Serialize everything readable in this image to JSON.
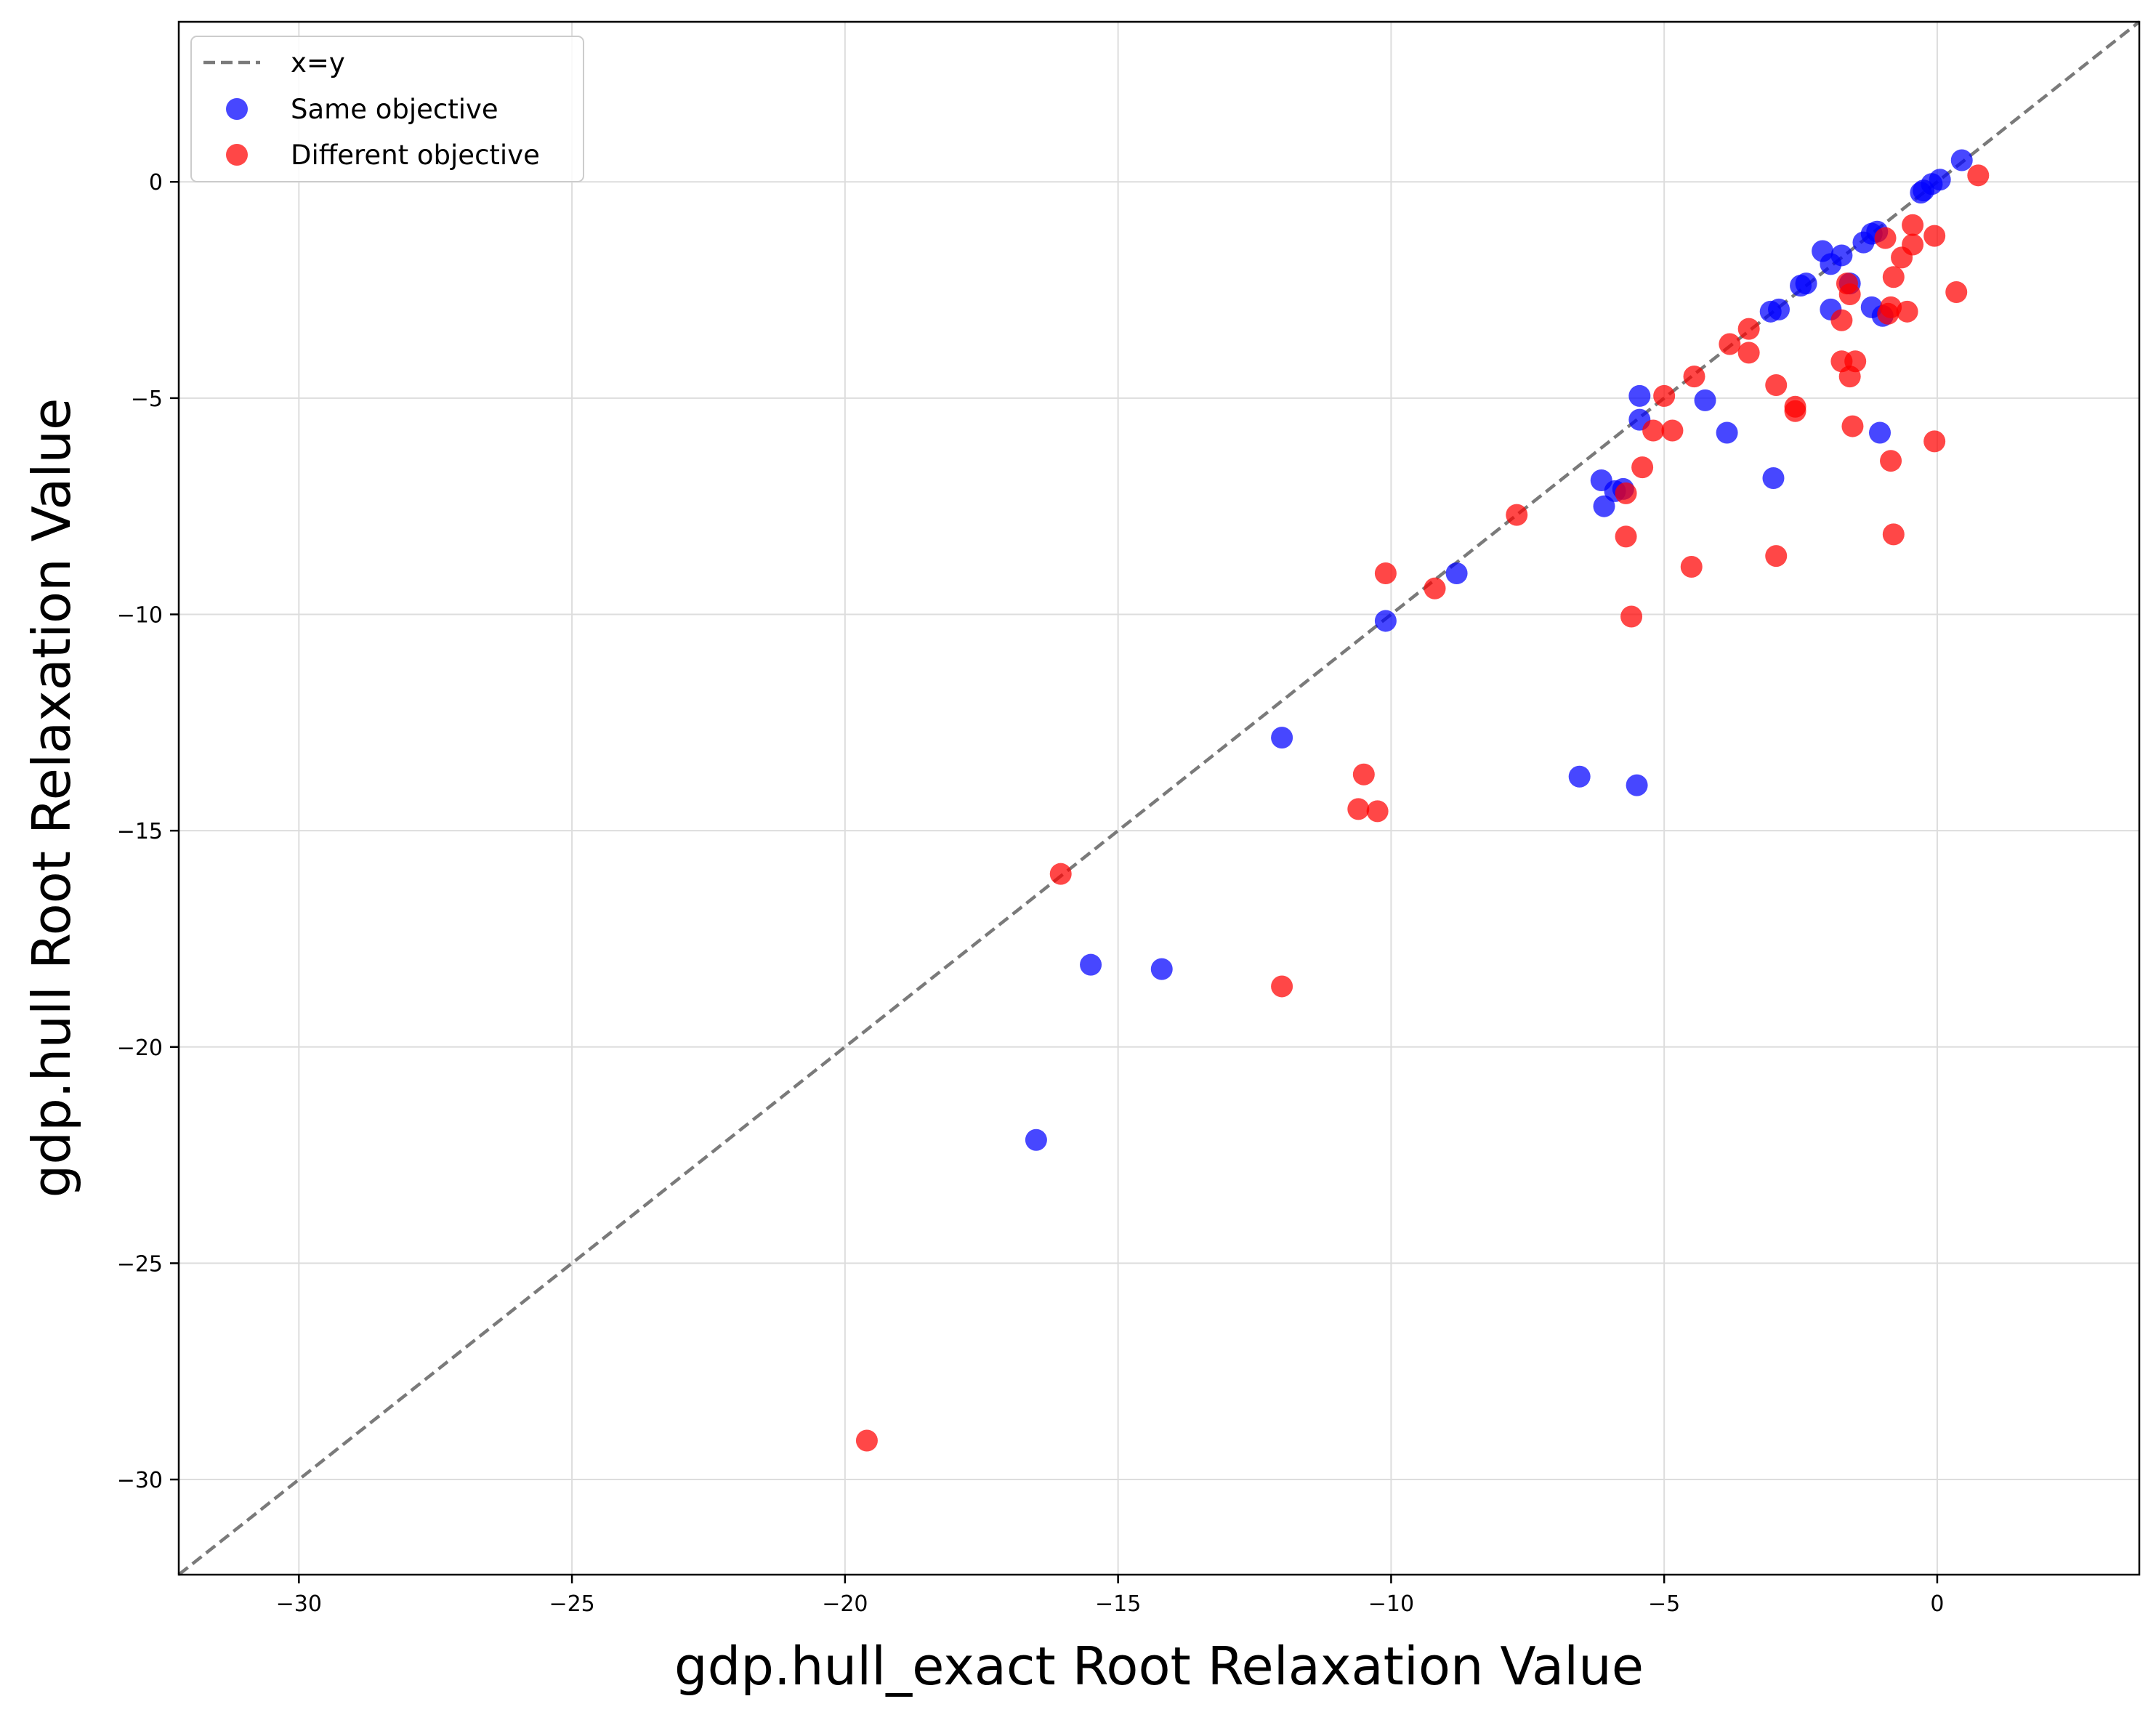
{
  "chart_data": {
    "type": "scatter",
    "title": "",
    "xlabel": "gdp.hull_exact Root Relaxation Value",
    "ylabel": "gdp.hull Root Relaxation Value",
    "xlim": [
      -32.2,
      3.7
    ],
    "ylim": [
      -32.2,
      3.7
    ],
    "xticks": [
      -30,
      -25,
      -20,
      -15,
      -10,
      -5,
      0
    ],
    "yticks": [
      -30,
      -25,
      -20,
      -15,
      -10,
      -5,
      0
    ],
    "xtick_labels": [
      "−30",
      "−25",
      "−20",
      "−15",
      "−10",
      "−5",
      "0"
    ],
    "ytick_labels": [
      "−30",
      "−25",
      "−20",
      "−15",
      "−10",
      "−5",
      "0"
    ],
    "grid": true,
    "legend_position": "top-left",
    "reference_line": {
      "name": "x=y",
      "color": "#7a7a7a",
      "style": "dashed"
    },
    "series": [
      {
        "name": "Same objective",
        "color": "#0000ff",
        "points": [
          [
            0.45,
            0.5
          ],
          [
            0.05,
            0.05
          ],
          [
            -0.1,
            -0.05
          ],
          [
            -0.25,
            -0.2
          ],
          [
            -0.3,
            -0.25
          ],
          [
            -1.1,
            -1.15
          ],
          [
            -1.2,
            -1.2
          ],
          [
            -1.35,
            -1.4
          ],
          [
            -1.75,
            -1.7
          ],
          [
            -1.95,
            -1.9
          ],
          [
            -2.1,
            -1.6
          ],
          [
            -2.4,
            -2.35
          ],
          [
            -2.5,
            -2.4
          ],
          [
            -2.9,
            -2.95
          ],
          [
            -3.05,
            -3.0
          ],
          [
            -1.6,
            -2.35
          ],
          [
            -1.95,
            -2.95
          ],
          [
            -1.2,
            -2.9
          ],
          [
            -1.0,
            -3.1
          ],
          [
            -1.05,
            -5.8
          ],
          [
            -3.0,
            -6.85
          ],
          [
            -3.85,
            -5.8
          ],
          [
            -4.25,
            -5.05
          ],
          [
            -5.45,
            -4.95
          ],
          [
            -5.45,
            -5.5
          ],
          [
            -6.15,
            -6.9
          ],
          [
            -6.1,
            -7.5
          ],
          [
            -5.9,
            -7.15
          ],
          [
            -5.75,
            -7.1
          ],
          [
            -8.8,
            -9.05
          ],
          [
            -10.1,
            -10.15
          ],
          [
            -12.0,
            -12.85
          ],
          [
            -6.55,
            -13.75
          ],
          [
            -5.5,
            -13.95
          ],
          [
            -15.5,
            -18.1
          ],
          [
            -14.2,
            -18.2
          ],
          [
            -16.5,
            -22.15
          ]
        ]
      },
      {
        "name": "Different objective",
        "color": "#ff0000",
        "points": [
          [
            0.75,
            0.15
          ],
          [
            -0.45,
            -1.0
          ],
          [
            -0.45,
            -1.45
          ],
          [
            -0.95,
            -1.3
          ],
          [
            -0.05,
            -1.25
          ],
          [
            -0.65,
            -1.75
          ],
          [
            -0.8,
            -2.2
          ],
          [
            -1.65,
            -2.35
          ],
          [
            -1.6,
            -2.6
          ],
          [
            0.35,
            -2.55
          ],
          [
            -0.85,
            -2.9
          ],
          [
            -0.9,
            -3.05
          ],
          [
            -0.55,
            -3.0
          ],
          [
            -1.75,
            -3.2
          ],
          [
            -3.45,
            -3.4
          ],
          [
            -3.8,
            -3.75
          ],
          [
            -3.45,
            -3.95
          ],
          [
            -1.75,
            -4.15
          ],
          [
            -1.5,
            -4.15
          ],
          [
            -1.6,
            -4.5
          ],
          [
            -4.45,
            -4.5
          ],
          [
            -2.95,
            -4.7
          ],
          [
            -5.0,
            -4.95
          ],
          [
            -2.6,
            -5.2
          ],
          [
            -2.6,
            -5.3
          ],
          [
            -5.2,
            -5.75
          ],
          [
            -4.85,
            -5.75
          ],
          [
            -1.55,
            -5.65
          ],
          [
            -5.4,
            -6.6
          ],
          [
            -0.85,
            -6.45
          ],
          [
            -0.05,
            -6.0
          ],
          [
            -5.7,
            -7.2
          ],
          [
            -7.7,
            -7.7
          ],
          [
            -5.7,
            -8.2
          ],
          [
            -0.8,
            -8.15
          ],
          [
            -2.95,
            -8.65
          ],
          [
            -4.5,
            -8.9
          ],
          [
            -10.1,
            -9.05
          ],
          [
            -9.2,
            -9.4
          ],
          [
            -5.6,
            -10.05
          ],
          [
            -10.5,
            -13.7
          ],
          [
            -10.6,
            -14.5
          ],
          [
            -10.25,
            -14.55
          ],
          [
            -16.05,
            -16.0
          ],
          [
            -12.0,
            -18.6
          ],
          [
            -19.6,
            -29.1
          ]
        ]
      }
    ]
  }
}
